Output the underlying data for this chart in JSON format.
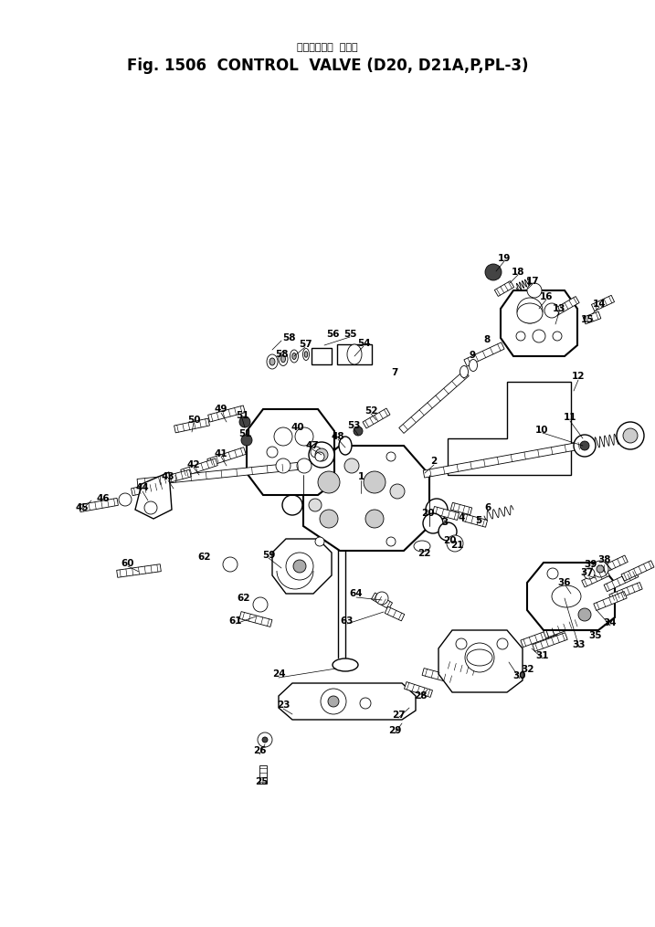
{
  "title_japanese": "コントロール  バルブ",
  "title_english": "Fig. 1506  CONTROL  VALVE (D20, D21A,P,PL-3)",
  "bg_color": "#ffffff",
  "line_color": "#000000",
  "title_fontsize": 12,
  "subtitle_fontsize": 8,
  "part_label_fontsize": 7.5,
  "fig_width": 7.17,
  "fig_height": 10.15,
  "dpi": 100
}
